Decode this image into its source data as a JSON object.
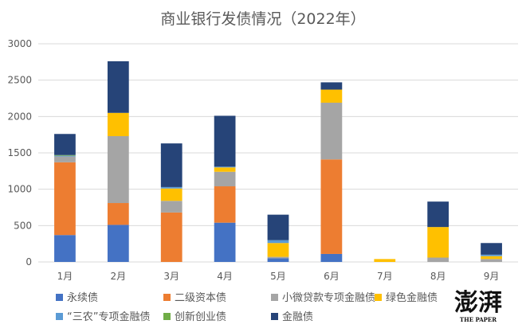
{
  "chart_data": {
    "type": "bar",
    "stacked": true,
    "title": "商业银行发债情况（2022年）",
    "xlabel": "",
    "ylabel": "",
    "ylim": [
      0,
      3000
    ],
    "yticks": [
      0,
      500,
      1000,
      1500,
      2000,
      2500,
      3000
    ],
    "grid": true,
    "legend_position": "bottom",
    "categories": [
      "1月",
      "2月",
      "3月",
      "4月",
      "5月",
      "6月",
      "7月",
      "8月",
      "9月"
    ],
    "series": [
      {
        "name": "永续债",
        "color": "#4472C4",
        "values": [
          370,
          510,
          0,
          540,
          50,
          110,
          0,
          0,
          0
        ]
      },
      {
        "name": "二级资本债",
        "color": "#ED7D31",
        "values": [
          1000,
          300,
          680,
          500,
          0,
          1300,
          0,
          0,
          0
        ]
      },
      {
        "name": "小微贷款专项金融债",
        "color": "#A5A5A5",
        "values": [
          80,
          920,
          160,
          200,
          20,
          780,
          0,
          60,
          40
        ]
      },
      {
        "name": "绿色金融债",
        "color": "#FFC000",
        "values": [
          0,
          320,
          170,
          60,
          190,
          180,
          40,
          420,
          40
        ]
      },
      {
        "name": "“三农”专项金融债",
        "color": "#5B9BD5",
        "values": [
          10,
          0,
          20,
          10,
          40,
          0,
          0,
          0,
          20
        ]
      },
      {
        "name": "创新创业债",
        "color": "#70AD47",
        "values": [
          10,
          0,
          0,
          0,
          0,
          0,
          0,
          0,
          0
        ]
      },
      {
        "name": "金融债",
        "color": "#264478",
        "values": [
          290,
          710,
          600,
          700,
          350,
          100,
          0,
          350,
          160
        ]
      }
    ]
  },
  "watermark": {
    "text": "澎湃",
    "subtext": "THE PAPER"
  }
}
